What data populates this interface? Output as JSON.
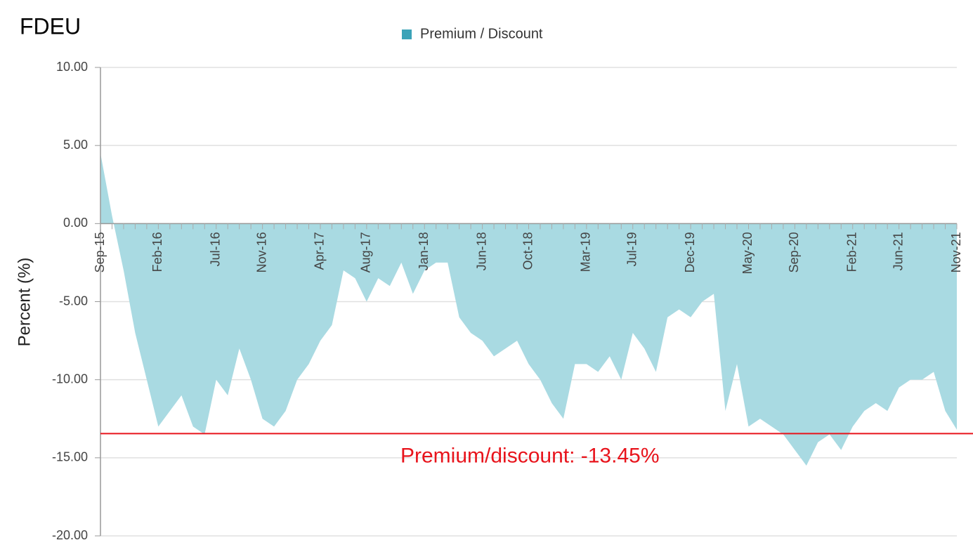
{
  "chart_data": {
    "type": "area",
    "title": "FDEU",
    "ylabel": "Percent (%)",
    "categories": [
      "Sep-15",
      null,
      null,
      null,
      null,
      "Feb-16",
      null,
      null,
      null,
      null,
      "Jul-16",
      null,
      null,
      null,
      "Nov-16",
      null,
      null,
      null,
      null,
      "Apr-17",
      null,
      null,
      null,
      "Aug-17",
      null,
      null,
      null,
      null,
      "Jan-18",
      null,
      null,
      null,
      null,
      "Jun-18",
      null,
      null,
      null,
      "Oct-18",
      null,
      null,
      null,
      null,
      "Mar-19",
      null,
      null,
      null,
      "Jul-19",
      null,
      null,
      null,
      null,
      "Dec-19",
      null,
      null,
      null,
      null,
      "May-20",
      null,
      null,
      null,
      "Sep-20",
      null,
      null,
      null,
      null,
      "Feb-21",
      null,
      null,
      null,
      "Jun-21",
      null,
      null,
      null,
      null,
      "Nov-21"
    ],
    "series": [
      {
        "name": "Premium / Discount",
        "color": "#3ba3b8",
        "fill": "#a9dae2",
        "values": [
          4.5,
          0.5,
          -3,
          -7,
          -10,
          -13,
          -12,
          -11,
          -13,
          -13.5,
          -10,
          -11,
          -8,
          -10,
          -12.5,
          -13,
          -12,
          -10,
          -9,
          -7.5,
          -6.5,
          -3,
          -3.5,
          -5,
          -3.5,
          -4,
          -2.5,
          -4.5,
          -3,
          -2.5,
          -2.5,
          -6,
          -7,
          -7.5,
          -8.5,
          -8,
          -7.5,
          -9,
          -10,
          -11.5,
          -12.5,
          -9,
          -9,
          -9.5,
          -8.5,
          -10,
          -7,
          -8,
          -9.5,
          -6,
          -5.5,
          -6,
          -5,
          -4.5,
          -12,
          -9,
          -13,
          -12.5,
          -13,
          -13.5,
          -14.5,
          -15.5,
          -14,
          -13.5,
          -14.5,
          -13,
          -12,
          -11.5,
          -12,
          -10.5,
          -10,
          -10,
          -9.5,
          -12,
          -13.2
        ]
      }
    ],
    "ylim": [
      -20,
      10
    ],
    "yticks": [
      {
        "value": -20,
        "label": "-20.00"
      },
      {
        "value": -15,
        "label": "-15.00"
      },
      {
        "value": -10,
        "label": "-10.00"
      },
      {
        "value": -5,
        "label": "-5.00"
      },
      {
        "value": 0,
        "label": "0.00"
      },
      {
        "value": 5,
        "label": "5.00"
      },
      {
        "value": 10,
        "label": "10.00"
      }
    ],
    "grid": true,
    "legend": "top",
    "reference_line": {
      "value": -13.45,
      "label": "Premium/discount: -13.45%",
      "color": "#e8141c"
    }
  }
}
